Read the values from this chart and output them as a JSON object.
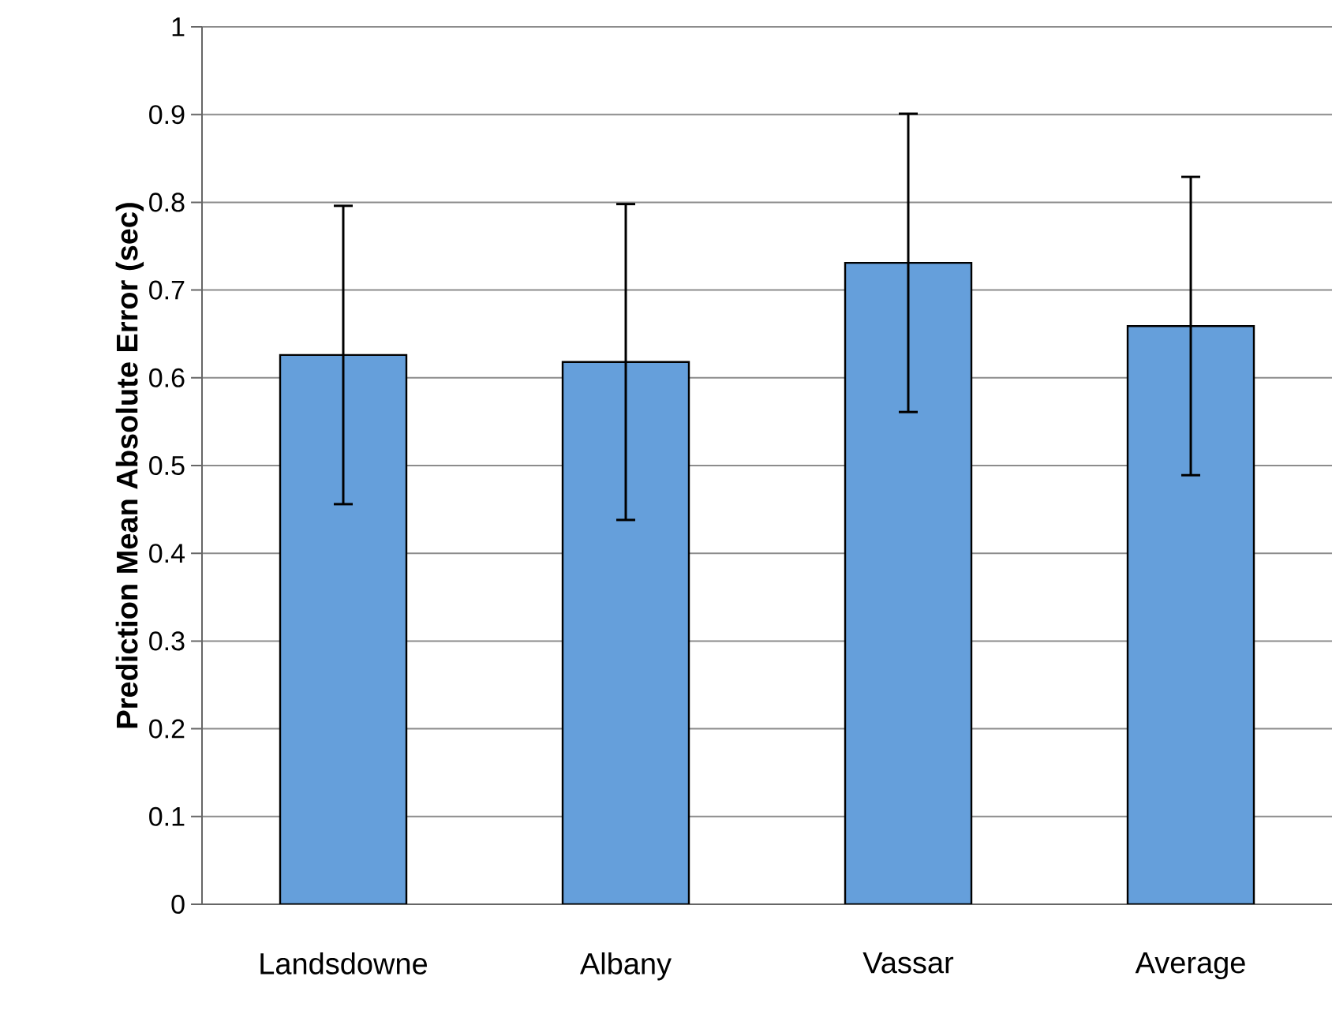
{
  "chart_data": {
    "type": "bar",
    "ylabel": "Prediction Mean Absolute Error (sec)",
    "categories": [
      "Landsdowne",
      "Albany",
      "Vassar",
      "Average"
    ],
    "values": [
      0.626,
      0.618,
      0.731,
      0.659
    ],
    "errors": [
      0.17,
      0.18,
      0.17,
      0.17
    ],
    "color": "#659fdb",
    "ylim": [
      0,
      1
    ],
    "yticks": [
      0,
      0.1,
      0.2,
      0.3,
      0.4,
      0.5,
      0.6,
      0.7,
      0.8,
      0.9,
      1
    ],
    "grid": "y"
  }
}
